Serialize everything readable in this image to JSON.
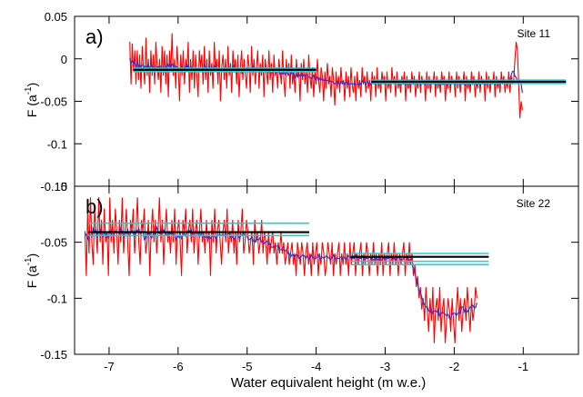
{
  "chart_data": [
    {
      "type": "line",
      "panel_label": "a)",
      "annotation": "Site 11",
      "ylabel_main": "F (a",
      "ylabel_sup": "-1",
      "ylabel_close": ")",
      "xlim": [
        -7.5,
        -0.2
      ],
      "ylim": [
        -0.15,
        0.05
      ],
      "x_ticks": [
        -7,
        -6,
        -5,
        -4,
        -3,
        -2,
        -1
      ],
      "y_ticks": [
        -0.15,
        -0.1,
        -0.05,
        0,
        0.05
      ],
      "y_tick_labels": [
        "-0.15",
        "-0.1",
        "-0.05",
        "0",
        "0.05"
      ],
      "colors": {
        "raw": "#ff0000",
        "smoothed": "#3333cc",
        "mean": "#000000",
        "uncertainty": "#22ccdd"
      },
      "series": [
        {
          "role": "raw",
          "x_start": -6.7,
          "x_step": 0.018,
          "values": [
            0.02,
            -0.03,
            0.018,
            -0.015,
            0.01,
            -0.03,
            0.01,
            -0.025,
            0.005,
            -0.035,
            0.015,
            -0.01,
            -0.03,
            0.025,
            -0.02,
            0.0,
            -0.04,
            0.01,
            -0.02,
            0.005,
            -0.03,
            0.02,
            -0.01,
            -0.025,
            0.0,
            -0.04,
            0.015,
            -0.02,
            0.01,
            -0.03,
            0.005,
            -0.045,
            0.01,
            -0.015,
            0.03,
            -0.02,
            0.0,
            -0.035,
            0.015,
            -0.01,
            -0.05,
            0.005,
            -0.02,
            0.01,
            -0.03,
            0.0,
            -0.015,
            0.02,
            -0.04,
            0.0,
            -0.025,
            0.01,
            -0.035,
            0.005,
            -0.02,
            -0.045,
            0.01,
            -0.01,
            0.005,
            -0.03,
            0.015,
            -0.025,
            0.0,
            -0.04,
            0.01,
            -0.02,
            -0.005,
            -0.035,
            0.02,
            -0.015,
            0.0,
            -0.03,
            0.01,
            -0.05,
            -0.01,
            0.005,
            -0.025,
            0.0,
            -0.035,
            0.015,
            -0.02,
            -0.005,
            -0.04,
            0.01,
            -0.015,
            0.0,
            -0.03,
            0.005,
            -0.045,
            -0.01,
            0.01,
            -0.025,
            0.0,
            -0.02,
            -0.035,
            0.005,
            -0.01,
            -0.04,
            0.015,
            -0.02,
            0.0,
            -0.03,
            -0.01,
            0.01,
            -0.035,
            -0.005,
            -0.02,
            0.005,
            -0.045,
            0.0,
            -0.015,
            -0.03,
            0.01,
            -0.025,
            -0.005,
            -0.04,
            0.005,
            -0.02,
            -0.01,
            -0.035,
            0.0,
            -0.015,
            -0.03,
            0.01,
            -0.025,
            -0.045,
            0.0,
            -0.02,
            -0.005,
            -0.035,
            0.005,
            -0.03,
            -0.015,
            -0.04,
            0.0,
            -0.02,
            -0.01,
            -0.05,
            -0.005,
            -0.025,
            0.0,
            -0.03,
            -0.015,
            -0.04,
            0.005,
            -0.02,
            -0.035,
            -0.01,
            -0.045,
            -0.015,
            -0.03,
            0.0,
            -0.025,
            -0.04,
            -0.01,
            -0.02,
            -0.05,
            -0.015,
            -0.035,
            -0.005,
            -0.03,
            -0.02,
            -0.045,
            -0.01,
            -0.025,
            -0.055,
            -0.015,
            -0.035,
            -0.02,
            -0.04,
            -0.01,
            -0.03,
            -0.025,
            -0.05,
            -0.015,
            -0.035,
            -0.02,
            -0.045,
            -0.01,
            -0.03,
            -0.04,
            -0.02,
            -0.05,
            -0.015,
            -0.035,
            -0.025,
            -0.045,
            -0.01,
            -0.03,
            -0.02,
            -0.04,
            -0.015,
            -0.035,
            -0.025,
            -0.05,
            -0.015,
            -0.03,
            -0.02,
            -0.045,
            -0.01,
            -0.035,
            -0.025,
            -0.04,
            -0.015,
            -0.03,
            -0.02,
            -0.05,
            -0.015,
            -0.035,
            -0.025,
            -0.04,
            -0.01,
            -0.03,
            -0.02,
            -0.045,
            -0.015,
            -0.035,
            -0.025,
            -0.04,
            -0.02,
            -0.03,
            -0.015,
            -0.05,
            -0.02,
            -0.035,
            -0.025,
            -0.04,
            -0.015,
            -0.03,
            -0.02,
            -0.045,
            -0.025,
            -0.035,
            -0.015,
            -0.04,
            -0.02,
            -0.03,
            -0.025,
            -0.05,
            -0.015,
            -0.035,
            -0.02,
            -0.04,
            -0.025,
            -0.03,
            -0.015,
            -0.045,
            -0.02,
            -0.035,
            -0.025,
            -0.04,
            -0.015,
            -0.03,
            -0.02,
            -0.05,
            -0.025,
            -0.035,
            -0.015,
            -0.04,
            -0.02,
            -0.03,
            -0.025,
            -0.045,
            -0.015,
            -0.035,
            -0.02,
            -0.04,
            -0.025,
            -0.03,
            -0.015,
            -0.05,
            -0.02,
            -0.035,
            -0.025,
            -0.04,
            -0.015,
            -0.03,
            -0.02,
            -0.045,
            -0.025,
            -0.035,
            -0.015,
            -0.04,
            -0.02,
            -0.03,
            -0.025,
            -0.05,
            -0.015,
            -0.035,
            -0.02,
            -0.04,
            -0.025,
            -0.03,
            -0.015,
            -0.045,
            -0.02,
            -0.035,
            -0.025,
            -0.04,
            -0.015,
            -0.03,
            -0.02,
            -0.04,
            -0.025,
            -0.035,
            -0.015,
            -0.04,
            -0.02,
            -0.03,
            -0.025,
            0.0,
            0.02,
            0.01,
            -0.03,
            -0.07,
            -0.05,
            -0.06
          ]
        },
        {
          "role": "smoothed",
          "window": 4
        },
        {
          "role": "mean",
          "segments": [
            [
              -6.65,
              -4.0,
              -0.013
            ],
            [
              -3.2,
              -0.38,
              -0.027
            ]
          ]
        },
        {
          "role": "uncertainty",
          "segments": [
            [
              -6.65,
              -4.0,
              -0.011
            ],
            [
              -6.65,
              -4.0,
              -0.015
            ],
            [
              -3.2,
              -0.38,
              -0.025
            ],
            [
              -3.2,
              -0.38,
              -0.029
            ]
          ]
        }
      ]
    },
    {
      "type": "line",
      "panel_label": "b)",
      "annotation": "Site 22",
      "ylabel_main": "F (a",
      "ylabel_sup": "-1",
      "ylabel_close": ")",
      "xlabel": "Water equivalent height  (m w.e.)",
      "xlim": [
        -7.5,
        -0.2
      ],
      "ylim": [
        -0.15,
        0.0
      ],
      "x_ticks": [
        -7,
        -6,
        -5,
        -4,
        -3,
        -2,
        -1
      ],
      "x_tick_labels": [
        "-7",
        "-6",
        "-5",
        "-4",
        "-3",
        "-2",
        "-1"
      ],
      "y_ticks": [
        -0.15,
        -0.1,
        -0.05,
        0
      ],
      "y_tick_labels": [
        "-0.15",
        "-0.1",
        "-0.05",
        "0"
      ],
      "colors": {
        "raw": "#ff0000",
        "smoothed": "#3333cc",
        "mean": "#000000",
        "uncertainty": "#22ccdd"
      },
      "series": [
        {
          "role": "raw",
          "x_start": -7.35,
          "x_step": 0.02,
          "values": [
            -0.04,
            -0.08,
            -0.02,
            -0.06,
            -0.01,
            -0.05,
            -0.07,
            -0.02,
            -0.04,
            -0.06,
            -0.01,
            -0.05,
            -0.03,
            -0.07,
            -0.02,
            -0.05,
            -0.04,
            -0.08,
            -0.01,
            -0.05,
            -0.03,
            -0.06,
            -0.02,
            -0.04,
            -0.07,
            -0.03,
            -0.05,
            -0.01,
            -0.06,
            -0.04,
            -0.02,
            -0.05,
            -0.08,
            -0.03,
            -0.04,
            -0.02,
            -0.06,
            -0.04,
            -0.01,
            -0.05,
            -0.07,
            -0.03,
            -0.04,
            -0.02,
            -0.06,
            -0.05,
            -0.03,
            -0.08,
            -0.04,
            -0.02,
            -0.05,
            -0.03,
            -0.06,
            -0.04,
            -0.01,
            -0.05,
            -0.03,
            -0.07,
            -0.04,
            -0.02,
            -0.05,
            -0.04,
            -0.06,
            -0.03,
            -0.05,
            -0.02,
            -0.07,
            -0.04,
            -0.03,
            -0.05,
            -0.08,
            -0.03,
            -0.04,
            -0.02,
            -0.06,
            -0.04,
            -0.03,
            -0.05,
            -0.02,
            -0.06,
            -0.04,
            -0.03,
            -0.07,
            -0.04,
            -0.02,
            -0.05,
            -0.04,
            -0.06,
            -0.03,
            -0.05,
            -0.04,
            -0.08,
            -0.03,
            -0.05,
            -0.02,
            -0.06,
            -0.04,
            -0.03,
            -0.05,
            -0.07,
            -0.04,
            -0.03,
            -0.05,
            -0.02,
            -0.06,
            -0.04,
            -0.05,
            -0.03,
            -0.06,
            -0.04,
            -0.07,
            -0.03,
            -0.05,
            -0.04,
            -0.02,
            -0.06,
            -0.05,
            -0.03,
            -0.04,
            -0.06,
            -0.05,
            -0.04,
            -0.07,
            -0.03,
            -0.05,
            -0.04,
            -0.06,
            -0.05,
            -0.03,
            -0.06,
            -0.04,
            -0.05,
            -0.07,
            -0.04,
            -0.06,
            -0.05,
            -0.04,
            -0.06,
            -0.05,
            -0.07,
            -0.05,
            -0.06,
            -0.04,
            -0.06,
            -0.05,
            -0.07,
            -0.06,
            -0.05,
            -0.07,
            -0.06,
            -0.05,
            -0.07,
            -0.06,
            -0.08,
            -0.05,
            -0.06,
            -0.07,
            -0.05,
            -0.06,
            -0.08,
            -0.06,
            -0.05,
            -0.07,
            -0.06,
            -0.08,
            -0.05,
            -0.07,
            -0.06,
            -0.05,
            -0.08,
            -0.06,
            -0.07,
            -0.05,
            -0.06,
            -0.08,
            -0.07,
            -0.05,
            -0.06,
            -0.07,
            -0.05,
            -0.08,
            -0.06,
            -0.07,
            -0.06,
            -0.05,
            -0.08,
            -0.06,
            -0.07,
            -0.05,
            -0.07,
            -0.06,
            -0.08,
            -0.05,
            -0.07,
            -0.06,
            -0.05,
            -0.08,
            -0.06,
            -0.07,
            -0.06,
            -0.05,
            -0.08,
            -0.06,
            -0.07,
            -0.05,
            -0.06,
            -0.08,
            -0.06,
            -0.07,
            -0.05,
            -0.07,
            -0.06,
            -0.08,
            -0.06,
            -0.07,
            -0.05,
            -0.08,
            -0.06,
            -0.07,
            -0.06,
            -0.05,
            -0.08,
            -0.06,
            -0.07,
            -0.05,
            -0.07,
            -0.06,
            -0.08,
            -0.06,
            -0.07,
            -0.06,
            -0.05,
            -0.08,
            -0.06,
            -0.07,
            -0.05,
            -0.07,
            -0.06,
            -0.08,
            -0.07,
            -0.09,
            -0.08,
            -0.1,
            -0.09,
            -0.11,
            -0.1,
            -0.12,
            -0.09,
            -0.11,
            -0.13,
            -0.1,
            -0.12,
            -0.09,
            -0.14,
            -0.11,
            -0.1,
            -0.12,
            -0.09,
            -0.13,
            -0.11,
            -0.1,
            -0.14,
            -0.12,
            -0.1,
            -0.11,
            -0.13,
            -0.1,
            -0.12,
            -0.14,
            -0.11,
            -0.09,
            -0.12,
            -0.1,
            -0.13,
            -0.11,
            -0.1,
            -0.12,
            -0.09,
            -0.11,
            -0.13,
            -0.1,
            -0.12,
            -0.11,
            -0.09,
            -0.1
          ]
        },
        {
          "role": "smoothed",
          "window": 4
        },
        {
          "role": "mean",
          "segments": [
            [
              -7.3,
              -4.1,
              -0.041
            ],
            [
              -3.5,
              -1.5,
              -0.063
            ]
          ]
        },
        {
          "role": "uncertainty",
          "segments": [
            [
              -7.3,
              -4.1,
              -0.033
            ],
            [
              -7.3,
              -4.1,
              -0.044
            ],
            [
              -3.5,
              -1.5,
              -0.06
            ],
            [
              -3.5,
              -1.5,
              -0.067
            ],
            [
              -3.5,
              -1.5,
              -0.07
            ]
          ]
        }
      ]
    }
  ]
}
